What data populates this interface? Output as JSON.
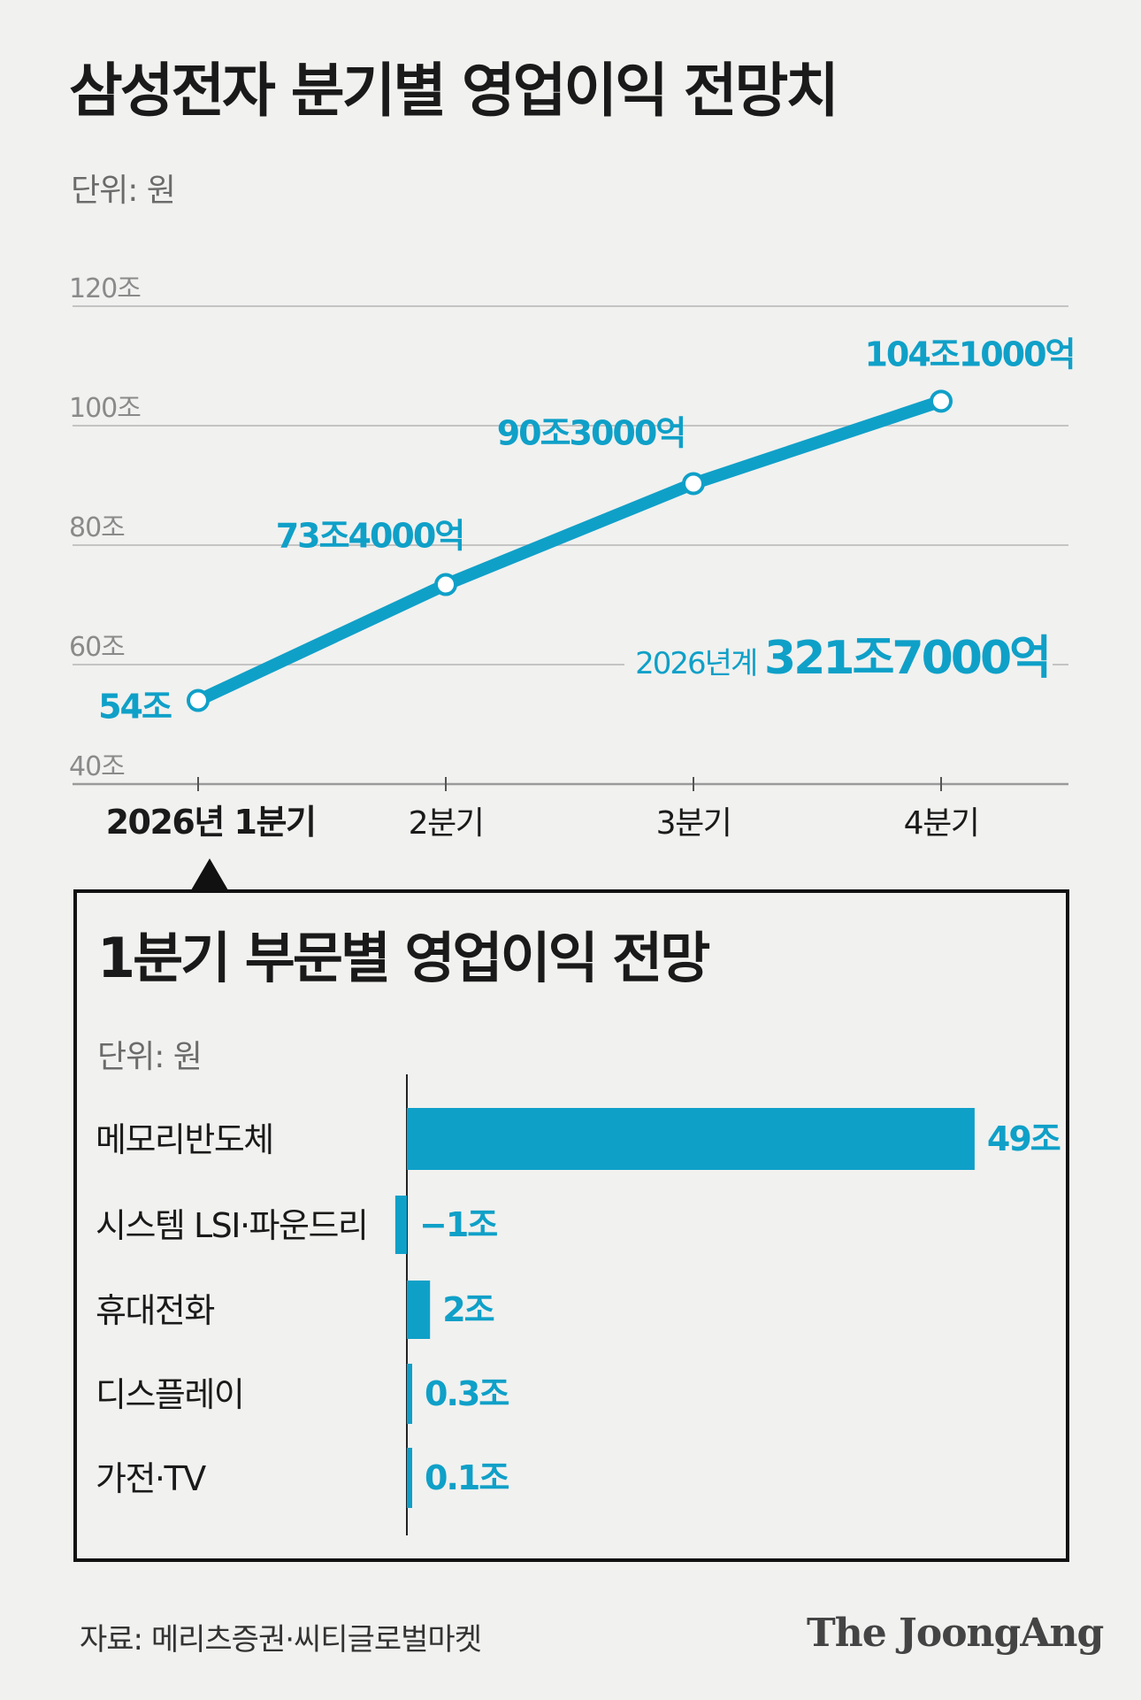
{
  "title": "삼성전자 분기별 영업이익 전망치",
  "unit_label": "단위: 원",
  "chart_data": [
    {
      "type": "line",
      "title": "삼성전자 분기별 영업이익 전망치",
      "unit": "단위: 원",
      "categories": [
        "2026년 1분기",
        "2분기",
        "3분기",
        "4분기"
      ],
      "values": [
        54,
        73.4,
        90.3,
        104.1
      ],
      "data_labels": [
        "54조",
        "73조4000억",
        "90조3000억",
        "104조1000억"
      ],
      "y_ticks": [
        {
          "value": 40,
          "label": "40조"
        },
        {
          "value": 60,
          "label": "60조"
        },
        {
          "value": 80,
          "label": "80조"
        },
        {
          "value": 100,
          "label": "100조"
        },
        {
          "value": 120,
          "label": "120조"
        }
      ],
      "ylim": [
        40,
        120
      ],
      "grid": true,
      "annotation": {
        "prefix": "2026년계",
        "value": "321조7000억"
      },
      "color": "#0fa0c8"
    },
    {
      "type": "bar",
      "orientation": "horizontal",
      "title": "1분기 부문별 영업이익 전망",
      "unit": "단위: 원",
      "categories": [
        "메모리반도체",
        "시스템 LSI·파운드리",
        "휴대전화",
        "디스플레이",
        "가전·TV"
      ],
      "values": [
        49,
        -1,
        2,
        0.3,
        0.1
      ],
      "data_labels": [
        "49조",
        "−1조",
        "2조",
        "0.3조",
        "0.1조"
      ],
      "color": "#0fa0c8"
    }
  ],
  "panel": {
    "title": "1분기 부문별 영업이익 전망",
    "unit_label": "단위: 원"
  },
  "footer": {
    "source": "자료: 메리츠증권·씨티글로벌마켓",
    "brand": "The JoongAng"
  }
}
